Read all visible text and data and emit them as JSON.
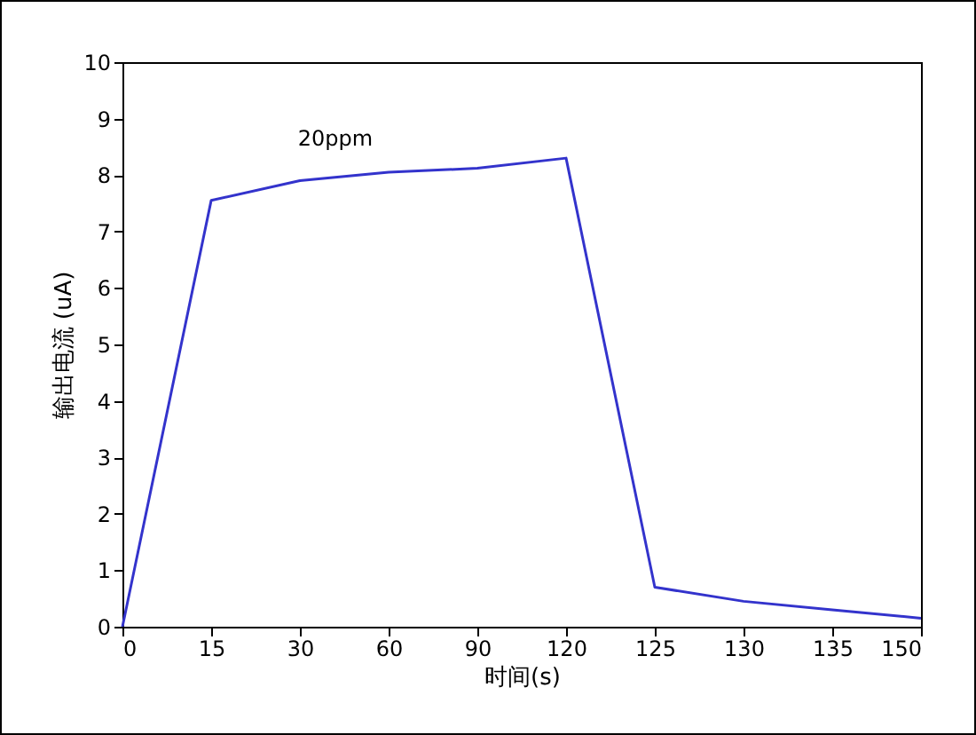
{
  "chart_data": {
    "type": "line",
    "xlabel": "时间(s)",
    "ylabel": "输出电流 (uA)",
    "categories": [
      "0",
      "15",
      "30",
      "60",
      "90",
      "120",
      "125",
      "130",
      "135",
      "150"
    ],
    "series": [
      {
        "name": "20ppm",
        "color": "#3333cc",
        "values": [
          0,
          7.55,
          7.9,
          8.05,
          8.12,
          8.3,
          0.7,
          0.45,
          0.3,
          0.15
        ]
      }
    ],
    "ylim": [
      0,
      10
    ],
    "yticks": [
      0,
      1,
      2,
      3,
      4,
      5,
      6,
      7,
      8,
      9,
      10
    ],
    "grid": false,
    "legend": false,
    "marker": "none",
    "line_style": "solid"
  }
}
